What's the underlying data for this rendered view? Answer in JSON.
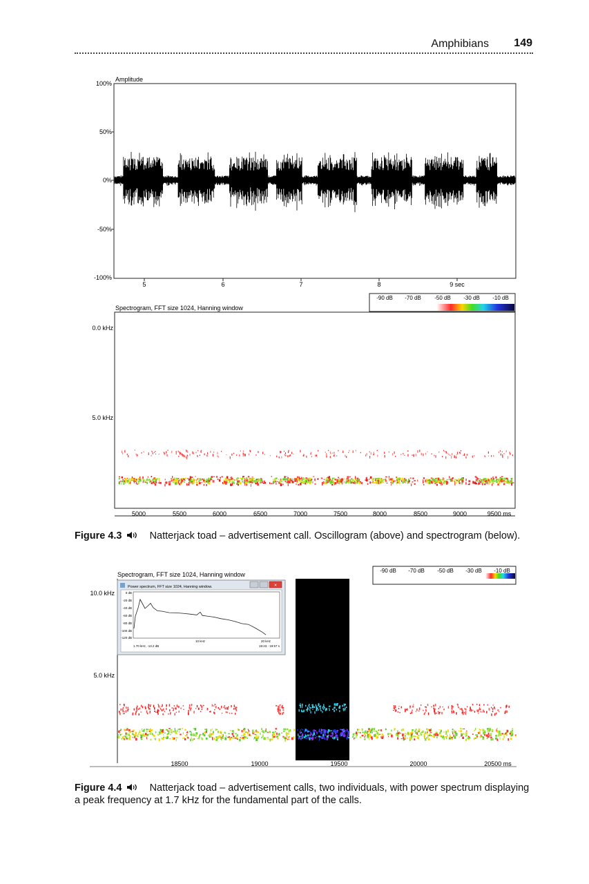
{
  "header": {
    "section_title": "Amphibians",
    "page_number": "149"
  },
  "figure_4_3": {
    "oscillogram": {
      "axis_title": "Amplitude",
      "y_ticks": [
        "100%",
        "50%",
        "0%",
        "-50%",
        "-100%"
      ],
      "x_ticks": [
        "5",
        "6",
        "7",
        "8",
        "9 sec"
      ]
    },
    "spectrogram": {
      "title": "Spectrogram, FFT size 1024, Hanning window",
      "y_ticks": [
        "0.0 kHz",
        "5.0 kHz"
      ],
      "x_ticks": [
        "5000",
        "5500",
        "6000",
        "6500",
        "7000",
        "7500",
        "8000",
        "8500",
        "9000",
        "9500 ms"
      ],
      "colorbar_labels": [
        "-90 dB",
        "-70 dB",
        "-50 dB",
        "-30 dB",
        "-10 dB"
      ]
    },
    "caption": {
      "label": "Figure 4.3",
      "text": "Natterjack toad – advertisement call. Oscillogram (above) and spectrogram (below)."
    }
  },
  "figure_4_4": {
    "spectrogram": {
      "title": "Spectrogram, FFT size 1024, Hanning window",
      "y_ticks": [
        "10.0 kHz",
        "5.0 kHz"
      ],
      "x_ticks": [
        "18500",
        "19000",
        "19500",
        "20000",
        "20500 ms"
      ],
      "colorbar_labels": [
        "-90 dB",
        "-70 dB",
        "-50 dB",
        "-30 dB",
        "-10 dB"
      ]
    },
    "power_window": {
      "title": "Power spectrum, FFT size 1024, Hanning window.",
      "y_ticks": [
        "0 dB",
        "-20 dB",
        "-40 dB",
        "-60 dB",
        "-80 dB",
        "-100 dB",
        "-120 dB"
      ],
      "x_ticks": [
        "10 kHz",
        "20 kHz"
      ],
      "readout": "1.70 kHz, -13.2 dB",
      "range": "19:23 - 19:57 s"
    },
    "caption": {
      "label": "Figure 4.4",
      "text": "Natterjack toad – advertisement calls, two individuals, with power spectrum displaying a peak frequency at 1.7 kHz for the fundamental part of the calls."
    }
  }
}
